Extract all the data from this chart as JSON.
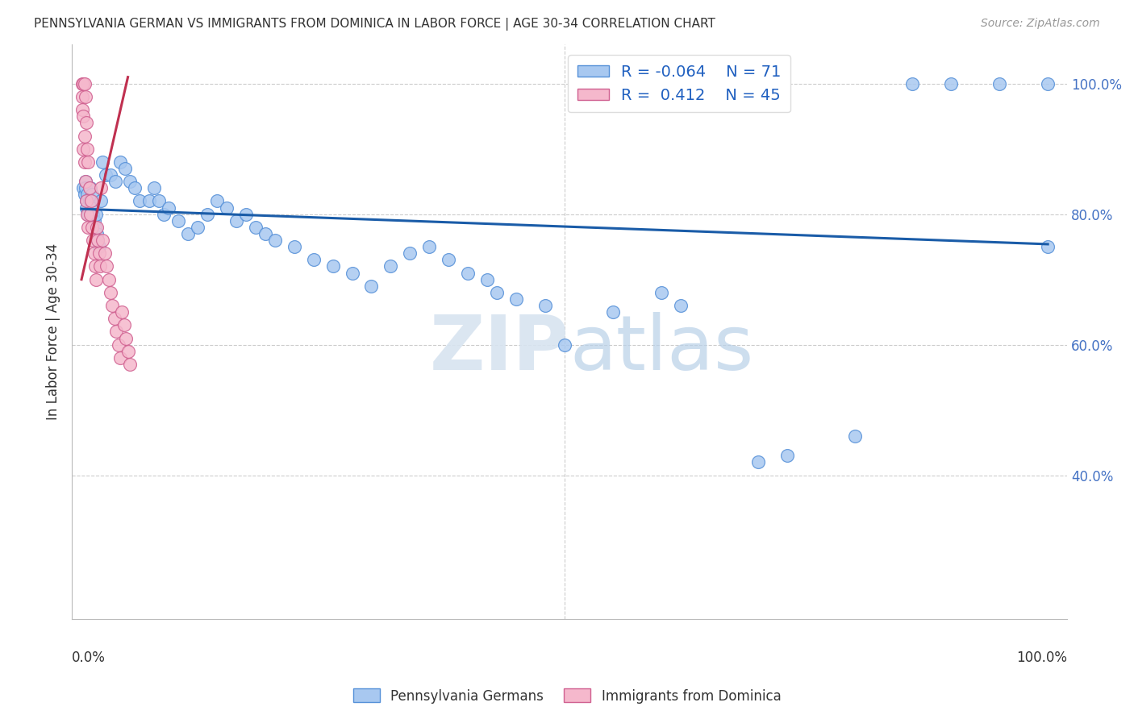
{
  "title": "PENNSYLVANIA GERMAN VS IMMIGRANTS FROM DOMINICA IN LABOR FORCE | AGE 30-34 CORRELATION CHART",
  "source": "Source: ZipAtlas.com",
  "ylabel": "In Labor Force | Age 30-34",
  "legend_label_blue": "Pennsylvania Germans",
  "legend_label_pink": "Immigrants from Dominica",
  "blue_R": "-0.064",
  "blue_N": "71",
  "pink_R": "0.412",
  "pink_N": "45",
  "blue_color": "#a8c8f0",
  "blue_edge_color": "#5590d8",
  "pink_color": "#f5b8cc",
  "pink_edge_color": "#d06090",
  "blue_line_color": "#1a5ca8",
  "pink_line_color": "#c03050",
  "watermark_color": "#dde8f5",
  "ytick_vals": [
    0.4,
    0.6,
    0.8,
    1.0
  ],
  "xlim": [
    -0.01,
    1.02
  ],
  "ylim": [
    0.18,
    1.06
  ],
  "trend_blue_x0": 0.0,
  "trend_blue_y0": 0.808,
  "trend_blue_x1": 1.0,
  "trend_blue_y1": 0.754,
  "trend_pink_x0": 0.0,
  "trend_pink_y0": 0.7,
  "trend_pink_x1": 0.048,
  "trend_pink_y1": 1.01,
  "blue_x": [
    0.002,
    0.003,
    0.004,
    0.004,
    0.005,
    0.005,
    0.006,
    0.007,
    0.008,
    0.009,
    0.01,
    0.011,
    0.012,
    0.013,
    0.014,
    0.015,
    0.016,
    0.017,
    0.018,
    0.02,
    0.022,
    0.025,
    0.03,
    0.035,
    0.04,
    0.045,
    0.05,
    0.055,
    0.06,
    0.07,
    0.075,
    0.08,
    0.085,
    0.09,
    0.1,
    0.11,
    0.12,
    0.13,
    0.14,
    0.15,
    0.16,
    0.17,
    0.18,
    0.19,
    0.2,
    0.22,
    0.24,
    0.26,
    0.28,
    0.3,
    0.32,
    0.34,
    0.36,
    0.38,
    0.4,
    0.42,
    0.43,
    0.45,
    0.48,
    0.5,
    0.55,
    0.6,
    0.62,
    0.7,
    0.73,
    0.8,
    0.86,
    0.9,
    0.95,
    1.0,
    1.0
  ],
  "blue_y": [
    0.84,
    0.83,
    0.85,
    0.84,
    0.82,
    0.81,
    0.83,
    0.8,
    0.82,
    0.84,
    0.81,
    0.83,
    0.8,
    0.79,
    0.78,
    0.8,
    0.77,
    0.76,
    0.75,
    0.82,
    0.88,
    0.86,
    0.86,
    0.85,
    0.88,
    0.87,
    0.85,
    0.84,
    0.82,
    0.82,
    0.84,
    0.82,
    0.8,
    0.81,
    0.79,
    0.77,
    0.78,
    0.8,
    0.82,
    0.81,
    0.79,
    0.8,
    0.78,
    0.77,
    0.76,
    0.75,
    0.73,
    0.72,
    0.71,
    0.69,
    0.72,
    0.74,
    0.75,
    0.73,
    0.71,
    0.7,
    0.68,
    0.67,
    0.66,
    0.6,
    0.65,
    0.68,
    0.66,
    0.42,
    0.43,
    0.46,
    1.0,
    1.0,
    1.0,
    1.0,
    0.75
  ],
  "pink_x": [
    0.001,
    0.001,
    0.001,
    0.002,
    0.002,
    0.002,
    0.003,
    0.003,
    0.003,
    0.004,
    0.004,
    0.005,
    0.005,
    0.006,
    0.006,
    0.007,
    0.007,
    0.008,
    0.009,
    0.01,
    0.011,
    0.012,
    0.013,
    0.014,
    0.015,
    0.016,
    0.017,
    0.018,
    0.019,
    0.02,
    0.022,
    0.024,
    0.026,
    0.028,
    0.03,
    0.032,
    0.034,
    0.036,
    0.038,
    0.04,
    0.042,
    0.044,
    0.046,
    0.048,
    0.05
  ],
  "pink_y": [
    1.0,
    0.98,
    0.96,
    1.0,
    0.95,
    0.9,
    1.0,
    0.92,
    0.88,
    0.98,
    0.85,
    0.94,
    0.82,
    0.9,
    0.8,
    0.88,
    0.78,
    0.84,
    0.8,
    0.82,
    0.78,
    0.76,
    0.74,
    0.72,
    0.7,
    0.78,
    0.76,
    0.74,
    0.72,
    0.84,
    0.76,
    0.74,
    0.72,
    0.7,
    0.68,
    0.66,
    0.64,
    0.62,
    0.6,
    0.58,
    0.65,
    0.63,
    0.61,
    0.59,
    0.57
  ]
}
